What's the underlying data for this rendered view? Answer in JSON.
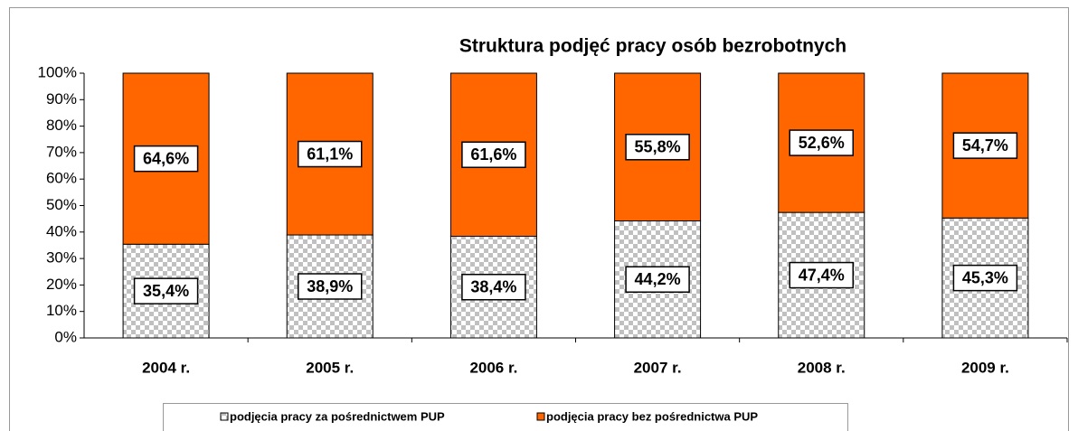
{
  "chart_data": {
    "type": "stacked_bar",
    "title": "Struktura podjęć pracy osób bezrobotnych",
    "categories": [
      "2004 r.",
      "2005 r.",
      "2006 r.",
      "2007 r.",
      "2008 r.",
      "2009 r."
    ],
    "series": [
      {
        "name": "podjęcia pracy za pośrednictwem PUP",
        "color": "#c0c0c0",
        "pattern": "checkerboard",
        "values": [
          35.4,
          38.9,
          38.4,
          44.2,
          47.4,
          45.3
        ],
        "value_labels": [
          "35,4%",
          "38,9%",
          "38,4%",
          "44,2%",
          "47,4%",
          "45,3%"
        ]
      },
      {
        "name": "podjęcia pracy bez pośrednictwa PUP",
        "color": "#ff6600",
        "values": [
          64.6,
          61.1,
          61.6,
          55.8,
          52.6,
          54.7
        ],
        "value_labels": [
          "64,6%",
          "61,1%",
          "61,6%",
          "55,8%",
          "52,6%",
          "54,7%"
        ]
      }
    ],
    "ylim": [
      0,
      100
    ],
    "yticks": [
      {
        "value": 0,
        "label": "0%"
      },
      {
        "value": 10,
        "label": "10%"
      },
      {
        "value": 20,
        "label": "20%"
      },
      {
        "value": 30,
        "label": "30%"
      },
      {
        "value": 40,
        "label": "40%"
      },
      {
        "value": 50,
        "label": "50%"
      },
      {
        "value": 60,
        "label": "60%"
      },
      {
        "value": 70,
        "label": "70%"
      },
      {
        "value": 80,
        "label": "80%"
      },
      {
        "value": 90,
        "label": "90%"
      },
      {
        "value": 100,
        "label": "100%"
      }
    ],
    "grid": false,
    "legend": "bottom"
  }
}
